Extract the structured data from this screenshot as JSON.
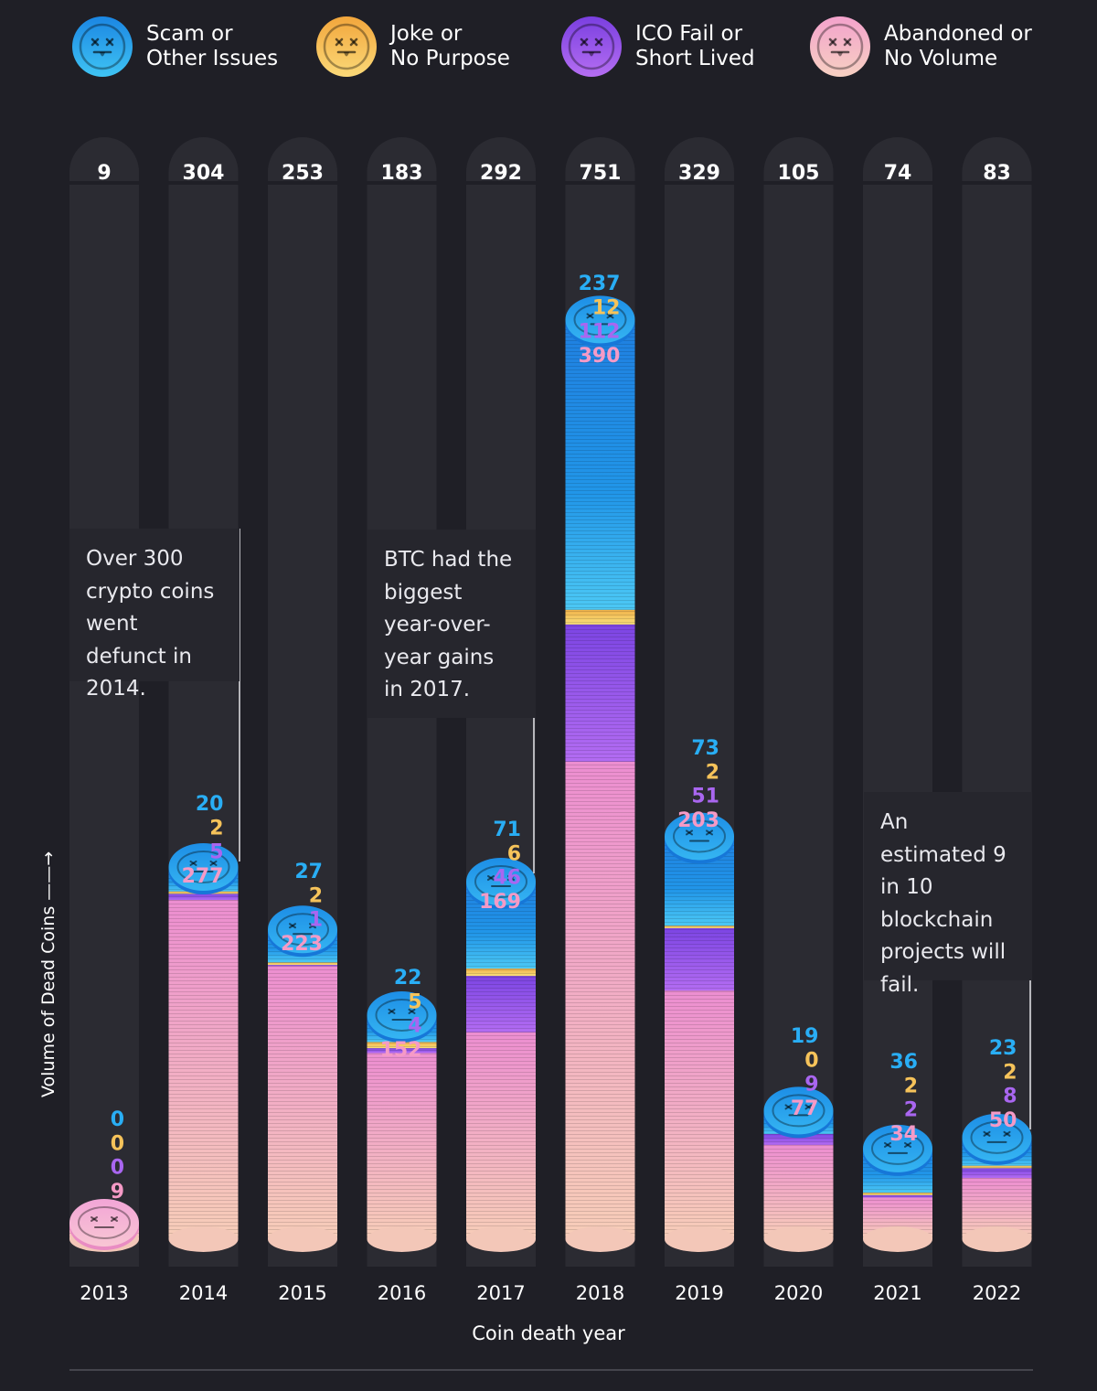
{
  "legend": [
    {
      "line1": "Scam or",
      "line2": "Other Issues",
      "color": "#1a8fe0"
    },
    {
      "line1": "Joke or",
      "line2": "No Purpose",
      "color": "#f2b344"
    },
    {
      "line1": "ICO Fail or",
      "line2": "Short Lived",
      "color": "#8a4be8"
    },
    {
      "line1": "Abandoned or",
      "line2": "No Volume",
      "color": "#f0a6c8"
    }
  ],
  "notes": {
    "n2014": "Over 300 crypto coins went defunct in 2014.",
    "n2017": "BTC had the biggest year-over-year gains in 2017.",
    "n2022": "An estimated 9 in 10 blockchain projects will fail."
  },
  "chart_data": {
    "type": "bar",
    "stacked": true,
    "title": "",
    "xlabel": "Coin death year",
    "ylabel": "Volume of Dead Coins",
    "categories": [
      "2013",
      "2014",
      "2015",
      "2016",
      "2017",
      "2018",
      "2019",
      "2020",
      "2021",
      "2022"
    ],
    "totals": [
      9,
      304,
      253,
      183,
      292,
      751,
      329,
      105,
      74,
      83
    ],
    "series": [
      {
        "name": "Scam or Other Issues",
        "color": "#29aef5",
        "values": [
          0,
          20,
          27,
          22,
          71,
          237,
          73,
          19,
          36,
          23
        ]
      },
      {
        "name": "Joke or No Purpose",
        "color": "#f6c35a",
        "values": [
          0,
          2,
          2,
          5,
          6,
          12,
          2,
          0,
          2,
          2
        ]
      },
      {
        "name": "ICO Fail or Short Lived",
        "color": "#a966f0",
        "values": [
          0,
          5,
          1,
          4,
          46,
          112,
          51,
          9,
          2,
          8
        ]
      },
      {
        "name": "Abandoned or No Volume",
        "color": "#f59ac6",
        "values": [
          9,
          277,
          223,
          152,
          169,
          390,
          203,
          77,
          34,
          50
        ]
      }
    ]
  }
}
